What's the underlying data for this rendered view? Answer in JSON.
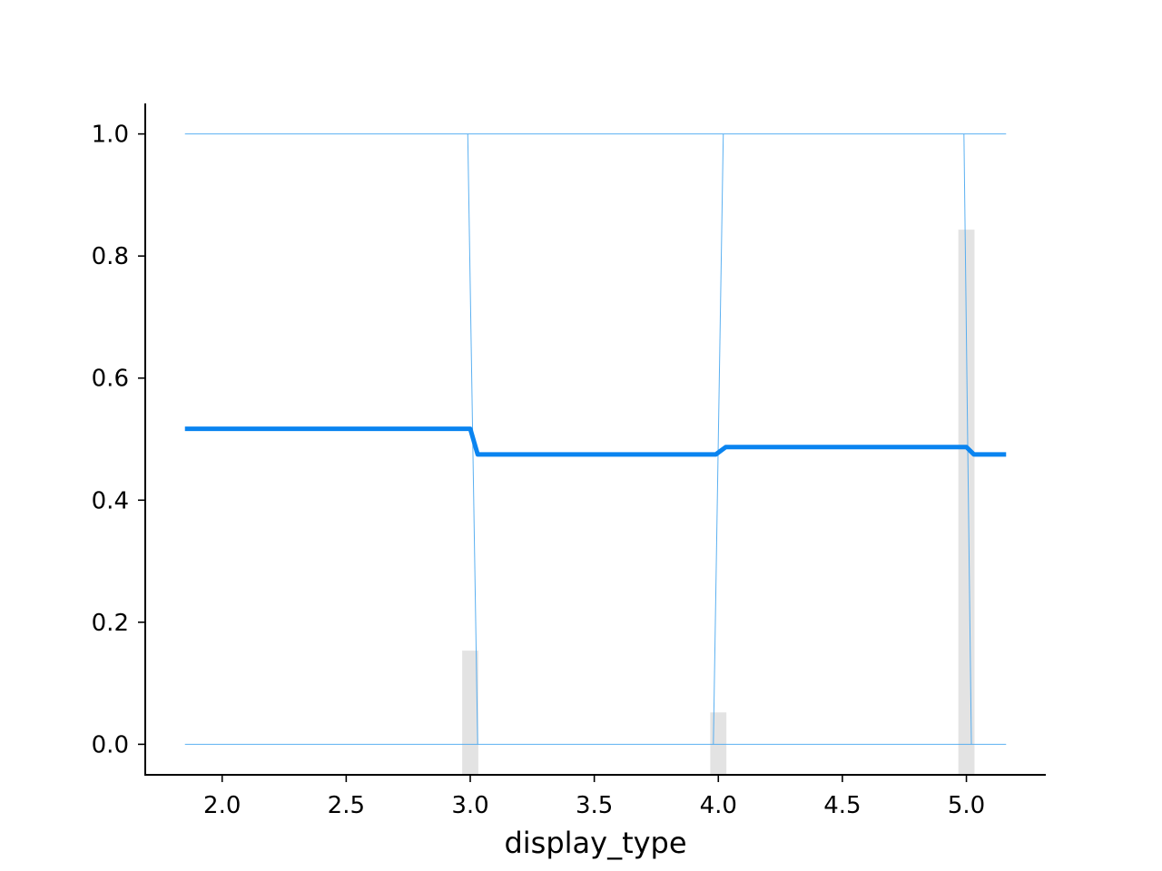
{
  "chart_data": {
    "type": "line",
    "xlabel": "display_type",
    "ylabel": "",
    "xlim": [
      1.69,
      5.32
    ],
    "ylim": [
      -0.05,
      1.05
    ],
    "xticks": [
      2.0,
      2.5,
      3.0,
      3.5,
      4.0,
      4.5,
      5.0
    ],
    "yticks": [
      0.0,
      0.2,
      0.4,
      0.6,
      0.8,
      1.0
    ],
    "grid": false,
    "average_line": {
      "color": "#0a84f0",
      "x": [
        1.85,
        3.0,
        3.03,
        3.99,
        4.03,
        5.0,
        5.03,
        5.16
      ],
      "y": [
        0.517,
        0.517,
        0.475,
        0.475,
        0.487,
        0.487,
        0.475,
        0.475
      ]
    },
    "individual_lines": {
      "color": "#4aa8f0",
      "x_range": [
        1.85,
        5.16
      ],
      "upper_value": 1.0,
      "lower_value": 0.0,
      "transition_pairs": [
        {
          "from": 2.99,
          "to": 3.03
        },
        {
          "from": 4.02,
          "to": 3.98
        },
        {
          "from": 4.99,
          "to": 5.02
        }
      ]
    },
    "histogram": {
      "color": "#e3e3e3",
      "bin_width": 0.065,
      "bars": [
        {
          "x": 3.0,
          "height": 0.185
        },
        {
          "x": 4.0,
          "height": 0.093
        },
        {
          "x": 5.0,
          "height": 0.812
        }
      ]
    }
  }
}
